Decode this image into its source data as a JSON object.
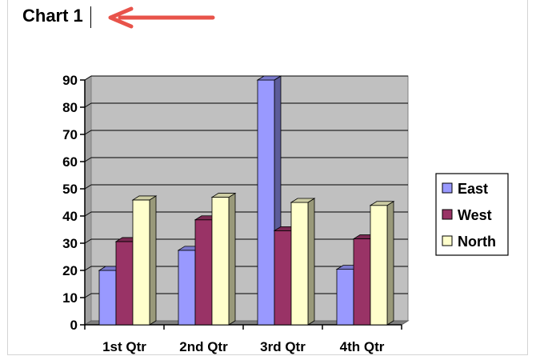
{
  "title": "Chart 1",
  "chart_data": {
    "type": "bar",
    "categories": [
      "1st Qtr",
      "2nd Qtr",
      "3rd Qtr",
      "4th Qtr"
    ],
    "series": [
      {
        "name": "East",
        "values": [
          20,
          27.4,
          90,
          20.4
        ],
        "color": "#9999ff"
      },
      {
        "name": "West",
        "values": [
          30.6,
          38.6,
          34.6,
          31.6
        ],
        "color": "#993366"
      },
      {
        "name": "North",
        "values": [
          45.9,
          46.9,
          45,
          43.9
        ],
        "color": "#ffffcc"
      }
    ],
    "ylim": [
      0,
      90
    ],
    "yticks": [
      0,
      10,
      20,
      30,
      40,
      50,
      60,
      70,
      80,
      90
    ],
    "grid": true,
    "legend": "right",
    "wall_color": "#c0c0c0"
  }
}
